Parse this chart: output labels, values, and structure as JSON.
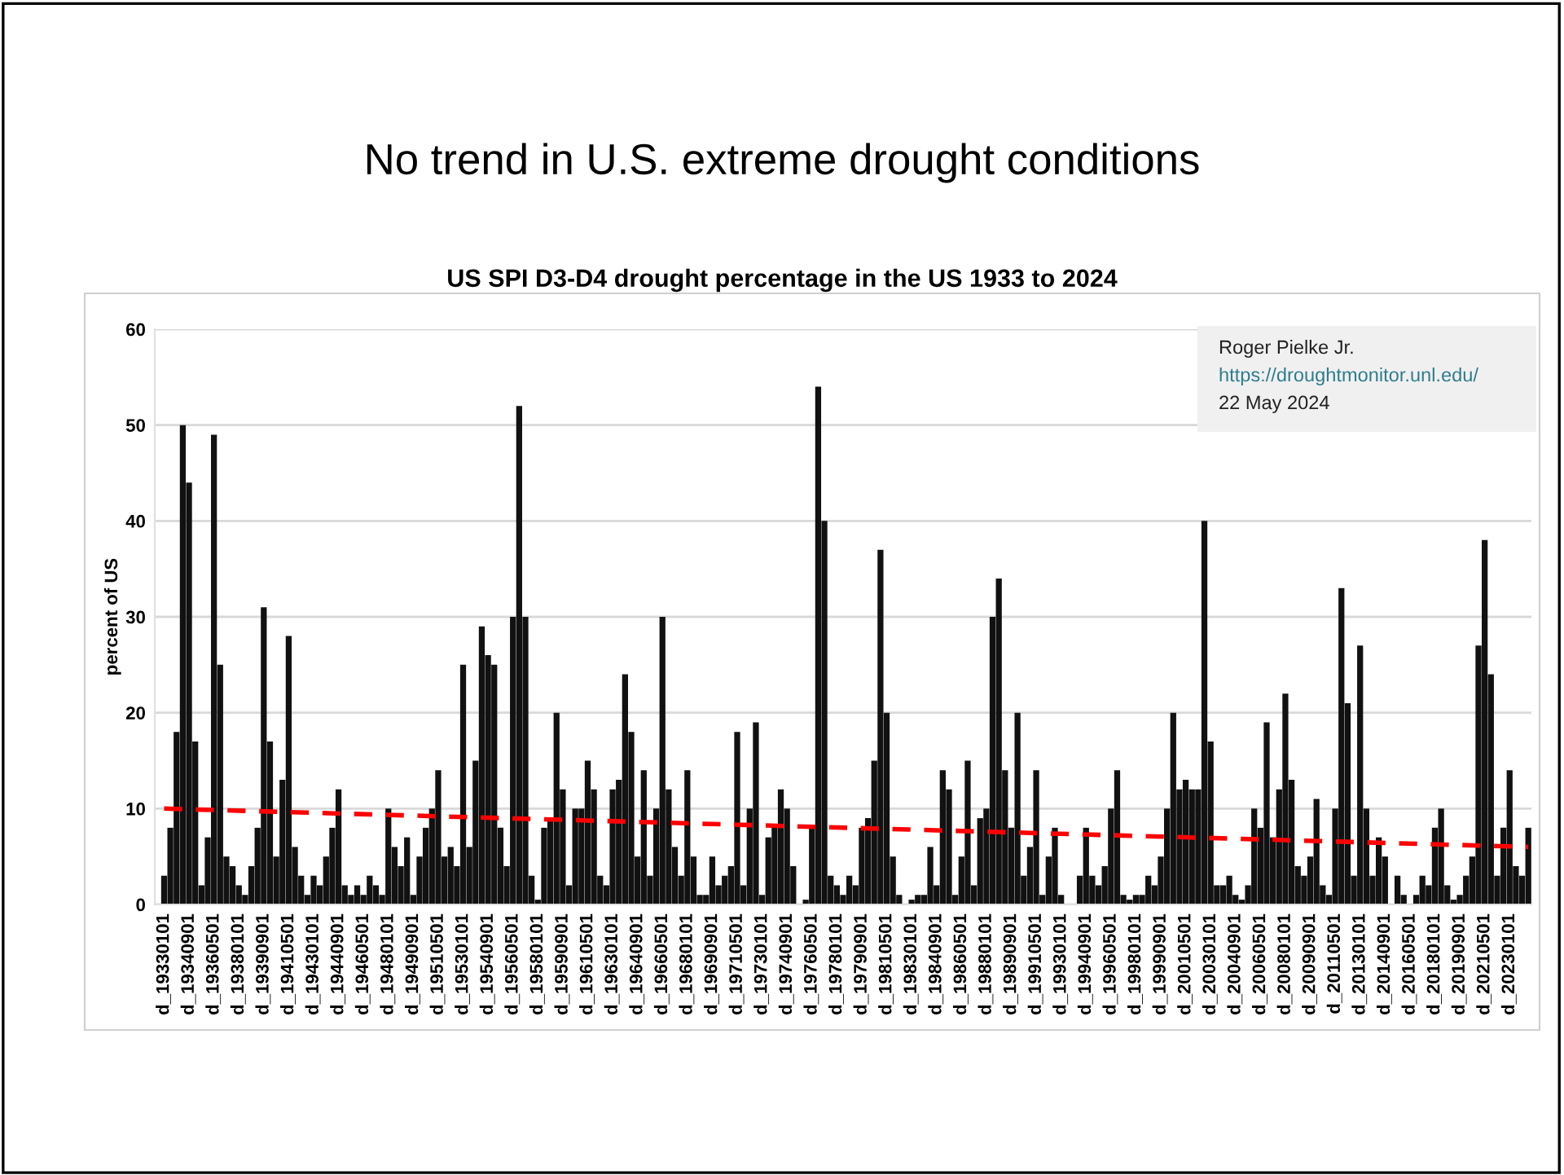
{
  "chart_data": {
    "type": "bar",
    "title": "No trend in U.S. extreme drought conditions",
    "subtitle": "US SPI D3-D4 drought percentage in the US 1933 to 2024",
    "ylabel": "percent of US",
    "annotations": [
      "Roger Pielke Jr.",
      "https://droughtmonitor.unl.edu/",
      "22 May 2024"
    ],
    "categories": [
      "d_19330101",
      null,
      null,
      null,
      "d_19340901",
      null,
      null,
      null,
      "d_19360501",
      null,
      null,
      null,
      "d_19380101",
      null,
      null,
      null,
      "d_19390901",
      null,
      null,
      null,
      "d_19410501",
      null,
      null,
      null,
      "d_19430101",
      null,
      null,
      null,
      "d_19440901",
      null,
      null,
      null,
      "d_19460501",
      null,
      null,
      null,
      "d_19480101",
      null,
      null,
      null,
      "d_19490901",
      null,
      null,
      null,
      "d_19510501",
      null,
      null,
      null,
      "d_19530101",
      null,
      null,
      null,
      "d_19540901",
      null,
      null,
      null,
      "d_19560501",
      null,
      null,
      null,
      "d_19580101",
      null,
      null,
      null,
      "d_19590901",
      null,
      null,
      null,
      "d_19610501",
      null,
      null,
      null,
      "d_19630101",
      null,
      null,
      null,
      "d_19640901",
      null,
      null,
      null,
      "d_19660501",
      null,
      null,
      null,
      "d_19680101",
      null,
      null,
      null,
      "d_19690901",
      null,
      null,
      null,
      "d_19710501",
      null,
      null,
      null,
      "d_19730101",
      null,
      null,
      null,
      "d_19740901",
      null,
      null,
      null,
      "d_19760501",
      null,
      null,
      null,
      "d_19780101",
      null,
      null,
      null,
      "d_19790901",
      null,
      null,
      null,
      "d_19810501",
      null,
      null,
      null,
      "d_19830101",
      null,
      null,
      null,
      "d_19840901",
      null,
      null,
      null,
      "d_19860501",
      null,
      null,
      null,
      "d_19880101",
      null,
      null,
      null,
      "d_19890901",
      null,
      null,
      null,
      "d_19910501",
      null,
      null,
      null,
      "d_19930101",
      null,
      null,
      null,
      "d_19940901",
      null,
      null,
      null,
      "d_19960501",
      null,
      null,
      null,
      "d_19980101",
      null,
      null,
      null,
      "d_19990901",
      null,
      null,
      null,
      "d_20010501",
      null,
      null,
      null,
      "d_20030101",
      null,
      null,
      null,
      "d_20040901",
      null,
      null,
      null,
      "d_20060501",
      null,
      null,
      null,
      "d_20080101",
      null,
      null,
      null,
      "d_20090901",
      null,
      null,
      null,
      "d_20110501",
      null,
      null,
      null,
      "d_20130101",
      null,
      null,
      null,
      "d_20140901",
      null,
      null,
      null,
      "d_20160501",
      null,
      null,
      null,
      "d_20180101",
      null,
      null,
      null,
      "d_20190901",
      null,
      null,
      null,
      "d_20210501",
      null,
      null,
      null,
      "d_20230101",
      null,
      null,
      null
    ],
    "series": [
      {
        "color": "#111111",
        "values": [
          3,
          8,
          18,
          50,
          44,
          17,
          2,
          7,
          49,
          25,
          5,
          4,
          2,
          1,
          4,
          8,
          31,
          17,
          5,
          13,
          28,
          6,
          3,
          1,
          3,
          2,
          5,
          8,
          12,
          2,
          1,
          2,
          1,
          3,
          2,
          1,
          10,
          6,
          4,
          7,
          1,
          5,
          8,
          10,
          14,
          5,
          6,
          4,
          25,
          6,
          15,
          29,
          26,
          25,
          8,
          4,
          30,
          52,
          30,
          3,
          0.5,
          8,
          9,
          20,
          12,
          2,
          10,
          10,
          15,
          12,
          3,
          2,
          12,
          13,
          24,
          18,
          5,
          14,
          3,
          10,
          30,
          12,
          6,
          3,
          14,
          5,
          1,
          1,
          5,
          2,
          3,
          4,
          18,
          2,
          10,
          19,
          1,
          7,
          8,
          12,
          10,
          4,
          0,
          0.5,
          8,
          54,
          40,
          3,
          2,
          1,
          3,
          2,
          8,
          9,
          15,
          37,
          20,
          5,
          1,
          0,
          0.5,
          1,
          1,
          6,
          2,
          14,
          12,
          1,
          5,
          15,
          2,
          9,
          10,
          30,
          34,
          14,
          8,
          20,
          3,
          6,
          14,
          1,
          5,
          8,
          1,
          0,
          0,
          3,
          8,
          3,
          2,
          4,
          10,
          14,
          1,
          0.5,
          1,
          1,
          3,
          2,
          5,
          10,
          20,
          12,
          13,
          12,
          12,
          40,
          17,
          2,
          2,
          3,
          1,
          0.5,
          2,
          10,
          8,
          19,
          7,
          12,
          22,
          13,
          4,
          3,
          5,
          11,
          2,
          1,
          10,
          33,
          21,
          3,
          27,
          10,
          3,
          7,
          5,
          0,
          3,
          1,
          0,
          1,
          3,
          2,
          8,
          10,
          2,
          0.5,
          1,
          3,
          5,
          27,
          38,
          24,
          3,
          8,
          14,
          4,
          3,
          8
        ]
      },
      {
        "type": "line",
        "color": "#ff0000",
        "line_style": "dashed",
        "values": [
          10,
          null,
          null,
          null,
          null,
          null,
          null,
          null,
          null,
          null,
          null,
          null,
          null,
          null,
          null,
          null,
          null,
          null,
          null,
          null,
          null,
          null,
          null,
          null,
          null,
          null,
          null,
          null,
          null,
          null,
          null,
          null,
          null,
          null,
          null,
          null,
          null,
          null,
          null,
          null,
          null,
          null,
          null,
          null,
          null,
          null,
          null,
          null,
          null,
          null,
          null,
          null,
          null,
          null,
          null,
          null,
          null,
          null,
          null,
          null,
          null,
          null,
          null,
          null,
          null,
          null,
          null,
          null,
          null,
          null,
          null,
          null,
          null,
          null,
          null,
          null,
          null,
          null,
          null,
          null,
          null,
          null,
          null,
          null,
          null,
          null,
          null,
          null,
          null,
          null,
          null,
          null,
          null,
          null,
          null,
          null,
          null,
          null,
          null,
          null,
          null,
          null,
          null,
          null,
          null,
          null,
          null,
          null,
          null,
          null,
          null,
          null,
          null,
          null,
          null,
          null,
          null,
          null,
          null,
          null,
          null,
          null,
          null,
          null,
          null,
          null,
          null,
          null,
          null,
          null,
          null,
          null,
          null,
          null,
          null,
          null,
          null,
          null,
          null,
          null,
          null,
          null,
          null,
          null,
          null,
          null,
          null,
          null,
          null,
          null,
          null,
          null,
          null,
          null,
          null,
          null,
          null,
          null,
          null,
          null,
          null,
          null,
          null,
          null,
          null,
          null,
          null,
          null,
          null,
          null,
          null,
          null,
          null,
          null,
          null,
          null,
          null,
          null,
          null,
          null,
          null,
          null,
          null,
          null,
          null,
          null,
          null,
          null,
          null,
          null,
          null,
          null,
          null,
          null,
          null,
          null,
          null,
          null,
          null,
          null,
          null,
          null,
          null,
          null,
          null,
          null,
          null,
          null,
          null,
          null,
          null,
          null,
          null,
          null,
          null,
          null,
          null,
          null,
          null,
          6
        ]
      }
    ],
    "ylim": [
      0,
      60
    ],
    "yticks": [
      0,
      10,
      20,
      30,
      40,
      50,
      60
    ],
    "grid": "y",
    "legend": false
  }
}
